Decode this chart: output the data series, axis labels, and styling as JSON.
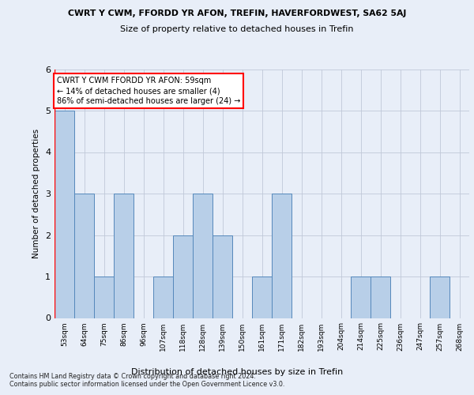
{
  "title1": "CWRT Y CWM, FFORDD YR AFON, TREFIN, HAVERFORDWEST, SA62 5AJ",
  "title2": "Size of property relative to detached houses in Trefin",
  "xlabel": "Distribution of detached houses by size in Trefin",
  "ylabel": "Number of detached properties",
  "categories": [
    "53sqm",
    "64sqm",
    "75sqm",
    "86sqm",
    "96sqm",
    "107sqm",
    "118sqm",
    "128sqm",
    "139sqm",
    "150sqm",
    "161sqm",
    "171sqm",
    "182sqm",
    "193sqm",
    "204sqm",
    "214sqm",
    "225sqm",
    "236sqm",
    "247sqm",
    "257sqm",
    "268sqm"
  ],
  "values": [
    5,
    3,
    1,
    3,
    0,
    1,
    2,
    3,
    2,
    0,
    1,
    3,
    0,
    0,
    0,
    1,
    1,
    0,
    0,
    1,
    0
  ],
  "bar_color": "#b8cfe8",
  "bar_edge_color": "#5588bb",
  "annotation_title": "CWRT Y CWM FFORDD YR AFON: 59sqm",
  "annotation_line2": "← 14% of detached houses are smaller (4)",
  "annotation_line3": "86% of semi-detached houses are larger (24) →",
  "footer1": "Contains HM Land Registry data © Crown copyright and database right 2024.",
  "footer2": "Contains public sector information licensed under the Open Government Licence v3.0.",
  "ylim": [
    0,
    6
  ],
  "background_color": "#e8eef8",
  "title_bg_color": "#dde5f5"
}
